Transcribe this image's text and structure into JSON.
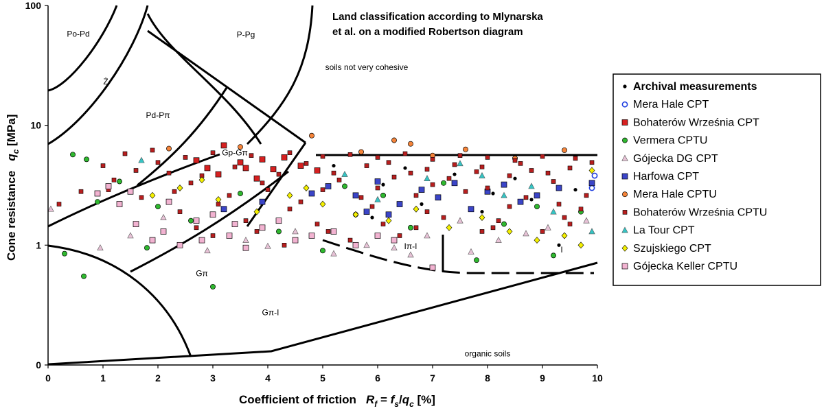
{
  "chart_data": {
    "type": "scatter",
    "title_lines": [
      "Land classification according to Mlynarska",
      "et al. on a modified Robertson diagram"
    ],
    "ylabel_main": "Cone resistance",
    "ylabel_sym": "q",
    "ylabel_sub": "c",
    "ylabel_unit": " [MPa]",
    "xlabel_main": "Coefficient of friction",
    "xlabel_formula": [
      "R",
      "f",
      " = ",
      "f",
      "s",
      "/",
      "q",
      "c",
      " [%]"
    ],
    "x_ticks": [
      "0",
      "1",
      "2",
      "3",
      "4",
      "5",
      "6",
      "7",
      "8",
      "9",
      "10"
    ],
    "y_ticks": [
      "0",
      "1",
      "10",
      "100"
    ],
    "xlim": [
      0,
      10
    ],
    "ylim_labels": [
      0,
      100
    ],
    "y_scale": "log",
    "grid": false,
    "legend_position": "right",
    "zone_labels": [
      {
        "text": "Po-Pd",
        "x": 0.55,
        "y": 55
      },
      {
        "text": "Ż",
        "x": 1.05,
        "y": 22
      },
      {
        "text": "P-Pg",
        "x": 3.6,
        "y": 54
      },
      {
        "text": "Pd-Pπ",
        "x": 2.0,
        "y": 11.5
      },
      {
        "text": "Gp-Gπ",
        "x": 3.4,
        "y": 5.6
      },
      {
        "text": "soils not very cohesive",
        "x": 5.8,
        "y": 29
      },
      {
        "text": "Iπ-I",
        "x": 6.6,
        "y": 0.93
      },
      {
        "text": "I",
        "x": 9.35,
        "y": 0.87
      },
      {
        "text": "Gπ",
        "x": 2.8,
        "y": 0.55
      },
      {
        "text": "Gπ-I",
        "x": 4.05,
        "y": 0.26
      },
      {
        "text": "organic soils",
        "x": 8.0,
        "y": 0.118
      }
    ],
    "series": [
      {
        "name": "Archival measurements",
        "marker": "dot",
        "color": "#000000",
        "points": [
          [
            5.2,
            4.6
          ],
          [
            6.1,
            3.2
          ],
          [
            6.8,
            2.2
          ],
          [
            7.4,
            3.9
          ],
          [
            8.1,
            2.7
          ],
          [
            8.8,
            2.4
          ],
          [
            9.3,
            1.0
          ],
          [
            9.6,
            2.9
          ],
          [
            5.9,
            1.7
          ],
          [
            7.9,
            1.9
          ],
          [
            6.5,
            4.4
          ],
          [
            8.5,
            3.6
          ]
        ]
      },
      {
        "name": "Mera Hale CPT",
        "marker": "circle-open",
        "color": "#1f3fe0",
        "points": [
          [
            9.95,
            3.8
          ],
          [
            9.9,
            3.0
          ]
        ]
      },
      {
        "name": "Bohaterów Września CPT",
        "marker": "square",
        "color": "#d62020",
        "points": [
          [
            3.2,
            6.8
          ],
          [
            3.5,
            4.9
          ],
          [
            3.9,
            5.2
          ],
          [
            4.1,
            4.3
          ],
          [
            2.9,
            4.4
          ],
          [
            3.6,
            4.4
          ],
          [
            4.6,
            4.6
          ],
          [
            3.1,
            3.9
          ],
          [
            4.3,
            5.4
          ],
          [
            2.7,
            5.1
          ],
          [
            3.8,
            3.6
          ],
          [
            4.9,
            4.2
          ]
        ]
      },
      {
        "name": "Vermera CPTU",
        "marker": "circle",
        "color": "#2fb82f",
        "points": [
          [
            0.45,
            5.7
          ],
          [
            0.7,
            5.2
          ],
          [
            0.65,
            0.55
          ],
          [
            0.3,
            0.85
          ],
          [
            0.9,
            2.3
          ],
          [
            1.3,
            3.4
          ],
          [
            2.0,
            2.1
          ],
          [
            2.6,
            1.6
          ],
          [
            3.0,
            0.45
          ],
          [
            3.5,
            2.7
          ],
          [
            4.2,
            1.3
          ],
          [
            5.0,
            0.9
          ],
          [
            5.6,
            1.8
          ],
          [
            6.1,
            2.6
          ],
          [
            6.6,
            1.4
          ],
          [
            7.2,
            3.3
          ],
          [
            7.8,
            0.75
          ],
          [
            8.3,
            1.5
          ],
          [
            8.9,
            2.1
          ],
          [
            9.2,
            0.82
          ],
          [
            9.7,
            1.9
          ],
          [
            1.8,
            0.95
          ],
          [
            5.4,
            3.1
          ]
        ]
      },
      {
        "name": "Gójecka DG CPT",
        "marker": "triangle",
        "color": "#e7c2d6",
        "points": [
          [
            0.05,
            2.0
          ],
          [
            0.95,
            0.95
          ],
          [
            1.5,
            1.2
          ],
          [
            2.1,
            1.7
          ],
          [
            2.9,
            0.9
          ],
          [
            3.6,
            1.1
          ],
          [
            4.5,
            1.3
          ],
          [
            5.2,
            0.85
          ],
          [
            5.8,
            1.0
          ],
          [
            6.3,
            0.95
          ],
          [
            6.9,
            1.2
          ],
          [
            7.5,
            1.6
          ],
          [
            8.2,
            1.1
          ],
          [
            8.7,
            1.25
          ],
          [
            9.1,
            1.4
          ],
          [
            9.8,
            1.6
          ],
          [
            6.6,
            0.83
          ],
          [
            7.7,
            0.88
          ],
          [
            4.0,
            0.98
          ]
        ]
      },
      {
        "name": "Harfowa CPT",
        "marker": "square",
        "color": "#3b45c8",
        "points": [
          [
            5.1,
            3.1
          ],
          [
            5.6,
            2.6
          ],
          [
            6.0,
            3.4
          ],
          [
            6.4,
            2.2
          ],
          [
            6.8,
            2.9
          ],
          [
            7.1,
            2.5
          ],
          [
            7.4,
            3.3
          ],
          [
            7.7,
            2.0
          ],
          [
            8.0,
            2.8
          ],
          [
            8.3,
            3.2
          ],
          [
            8.6,
            2.3
          ],
          [
            8.9,
            2.6
          ],
          [
            9.3,
            3.0
          ],
          [
            9.9,
            3.3
          ],
          [
            5.8,
            1.9
          ],
          [
            6.2,
            1.8
          ],
          [
            4.8,
            2.7
          ],
          [
            3.9,
            2.3
          ],
          [
            3.2,
            2.0
          ]
        ]
      },
      {
        "name": "Mera Hale CPTU",
        "marker": "circle",
        "color": "#f5843a",
        "points": [
          [
            4.8,
            8.2
          ],
          [
            5.7,
            6.0
          ],
          [
            6.3,
            7.5
          ],
          [
            6.6,
            7.0
          ],
          [
            7.6,
            6.3
          ],
          [
            8.5,
            5.3
          ],
          [
            9.4,
            6.2
          ],
          [
            3.5,
            6.6
          ],
          [
            2.2,
            6.4
          ],
          [
            7.0,
            5.6
          ]
        ]
      },
      {
        "name": "Bohaterów Września CPTU",
        "marker": "square-small",
        "color": "#b81e1e",
        "points": [
          [
            1.4,
            5.8
          ],
          [
            1.9,
            6.2
          ],
          [
            2.5,
            5.4
          ],
          [
            3.0,
            5.9
          ],
          [
            3.7,
            5.6
          ],
          [
            4.4,
            5.9
          ],
          [
            5.0,
            5.5
          ],
          [
            5.5,
            5.7
          ],
          [
            6.0,
            5.4
          ],
          [
            6.5,
            5.8
          ],
          [
            7.0,
            5.2
          ],
          [
            7.5,
            5.6
          ],
          [
            8.0,
            5.4
          ],
          [
            8.5,
            5.1
          ],
          [
            9.0,
            5.5
          ],
          [
            9.6,
            5.3
          ],
          [
            1.0,
            4.6
          ],
          [
            2.2,
            4.0
          ],
          [
            5.8,
            4.6
          ],
          [
            6.9,
            4.3
          ],
          [
            7.9,
            4.5
          ],
          [
            8.8,
            4.2
          ],
          [
            9.5,
            4.4
          ],
          [
            1.2,
            3.5
          ],
          [
            2.6,
            3.3
          ],
          [
            4.0,
            2.9
          ],
          [
            5.3,
            3.5
          ],
          [
            6.3,
            3.7
          ],
          [
            7.3,
            3.6
          ],
          [
            8.4,
            3.8
          ],
          [
            9.2,
            3.4
          ],
          [
            0.6,
            2.8
          ],
          [
            1.7,
            2.5
          ],
          [
            3.3,
            2.6
          ],
          [
            4.6,
            2.3
          ],
          [
            5.7,
            2.5
          ],
          [
            6.7,
            2.6
          ],
          [
            7.6,
            2.8
          ],
          [
            8.7,
            2.5
          ],
          [
            9.8,
            2.6
          ],
          [
            2.4,
            1.9
          ],
          [
            3.6,
            1.6
          ],
          [
            4.9,
            1.5
          ],
          [
            6.1,
            1.5
          ],
          [
            7.2,
            1.7
          ],
          [
            8.2,
            1.6
          ],
          [
            9.4,
            1.7
          ],
          [
            3.0,
            1.2
          ],
          [
            4.3,
            1.0
          ],
          [
            5.5,
            1.1
          ],
          [
            6.4,
            1.2
          ],
          [
            7.9,
            1.3
          ],
          [
            9.0,
            1.3
          ],
          [
            2.0,
            4.9
          ],
          [
            3.4,
            4.5
          ],
          [
            4.7,
            4.8
          ],
          [
            6.2,
            4.9
          ],
          [
            7.4,
            4.7
          ],
          [
            8.6,
            4.8
          ],
          [
            9.9,
            4.9
          ],
          [
            1.6,
            4.2
          ],
          [
            2.8,
            3.8
          ],
          [
            4.2,
            3.9
          ],
          [
            5.2,
            4.0
          ],
          [
            6.6,
            4.0
          ],
          [
            7.8,
            4.1
          ],
          [
            9.1,
            4.0
          ],
          [
            0.2,
            2.2
          ],
          [
            1.1,
            2.9
          ],
          [
            2.3,
            2.8
          ],
          [
            3.9,
            3.3
          ],
          [
            5.0,
            2.9
          ],
          [
            6.0,
            3.0
          ],
          [
            7.0,
            3.2
          ],
          [
            8.0,
            3.0
          ],
          [
            9.3,
            2.2
          ],
          [
            3.1,
            2.2
          ],
          [
            4.4,
            2.0
          ],
          [
            5.9,
            2.1
          ],
          [
            6.9,
            1.9
          ],
          [
            8.4,
            2.1
          ],
          [
            9.7,
            2.0
          ],
          [
            2.7,
            1.4
          ],
          [
            3.8,
            1.3
          ],
          [
            5.1,
            1.3
          ],
          [
            6.7,
            1.4
          ],
          [
            8.1,
            1.4
          ],
          [
            9.5,
            1.5
          ]
        ]
      },
      {
        "name": "La Tour CPT",
        "marker": "triangle",
        "color": "#35c4c4",
        "points": [
          [
            1.7,
            5.1
          ],
          [
            5.4,
            3.9
          ],
          [
            6.9,
            3.6
          ],
          [
            7.5,
            4.8
          ],
          [
            8.3,
            2.6
          ],
          [
            8.8,
            3.1
          ],
          [
            9.2,
            1.9
          ],
          [
            9.9,
            1.3
          ],
          [
            6.0,
            2.4
          ],
          [
            7.9,
            3.8
          ]
        ]
      },
      {
        "name": "Szujskiego CPT",
        "marker": "diamond",
        "color": "#f4f000",
        "points": [
          [
            1.9,
            2.6
          ],
          [
            2.4,
            3.0
          ],
          [
            3.1,
            2.4
          ],
          [
            3.8,
            1.9
          ],
          [
            4.4,
            2.6
          ],
          [
            5.0,
            2.2
          ],
          [
            5.6,
            1.8
          ],
          [
            6.2,
            1.6
          ],
          [
            6.7,
            2.0
          ],
          [
            7.3,
            1.4
          ],
          [
            7.9,
            1.7
          ],
          [
            8.4,
            1.3
          ],
          [
            8.9,
            1.1
          ],
          [
            9.4,
            1.2
          ],
          [
            9.9,
            4.2
          ],
          [
            9.7,
            1.0
          ],
          [
            2.8,
            3.5
          ],
          [
            4.7,
            3.0
          ]
        ]
      },
      {
        "name": "Gójecka Keller CPTU",
        "marker": "square",
        "color": "#f2b3d1",
        "points": [
          [
            0.9,
            2.7
          ],
          [
            1.3,
            2.2
          ],
          [
            1.6,
            1.5
          ],
          [
            1.9,
            1.1
          ],
          [
            2.1,
            1.3
          ],
          [
            2.4,
            1.0
          ],
          [
            2.7,
            1.6
          ],
          [
            3.0,
            1.8
          ],
          [
            3.3,
            1.2
          ],
          [
            3.6,
            0.95
          ],
          [
            3.9,
            1.4
          ],
          [
            4.2,
            1.6
          ],
          [
            4.5,
            1.1
          ],
          [
            4.8,
            1.2
          ],
          [
            5.2,
            1.3
          ],
          [
            5.6,
            1.0
          ],
          [
            6.0,
            1.2
          ],
          [
            6.3,
            1.1
          ],
          [
            7.0,
            0.65
          ],
          [
            1.1,
            3.1
          ],
          [
            1.5,
            2.8
          ],
          [
            2.2,
            2.3
          ],
          [
            2.8,
            1.1
          ],
          [
            3.4,
            1.5
          ]
        ]
      }
    ]
  }
}
